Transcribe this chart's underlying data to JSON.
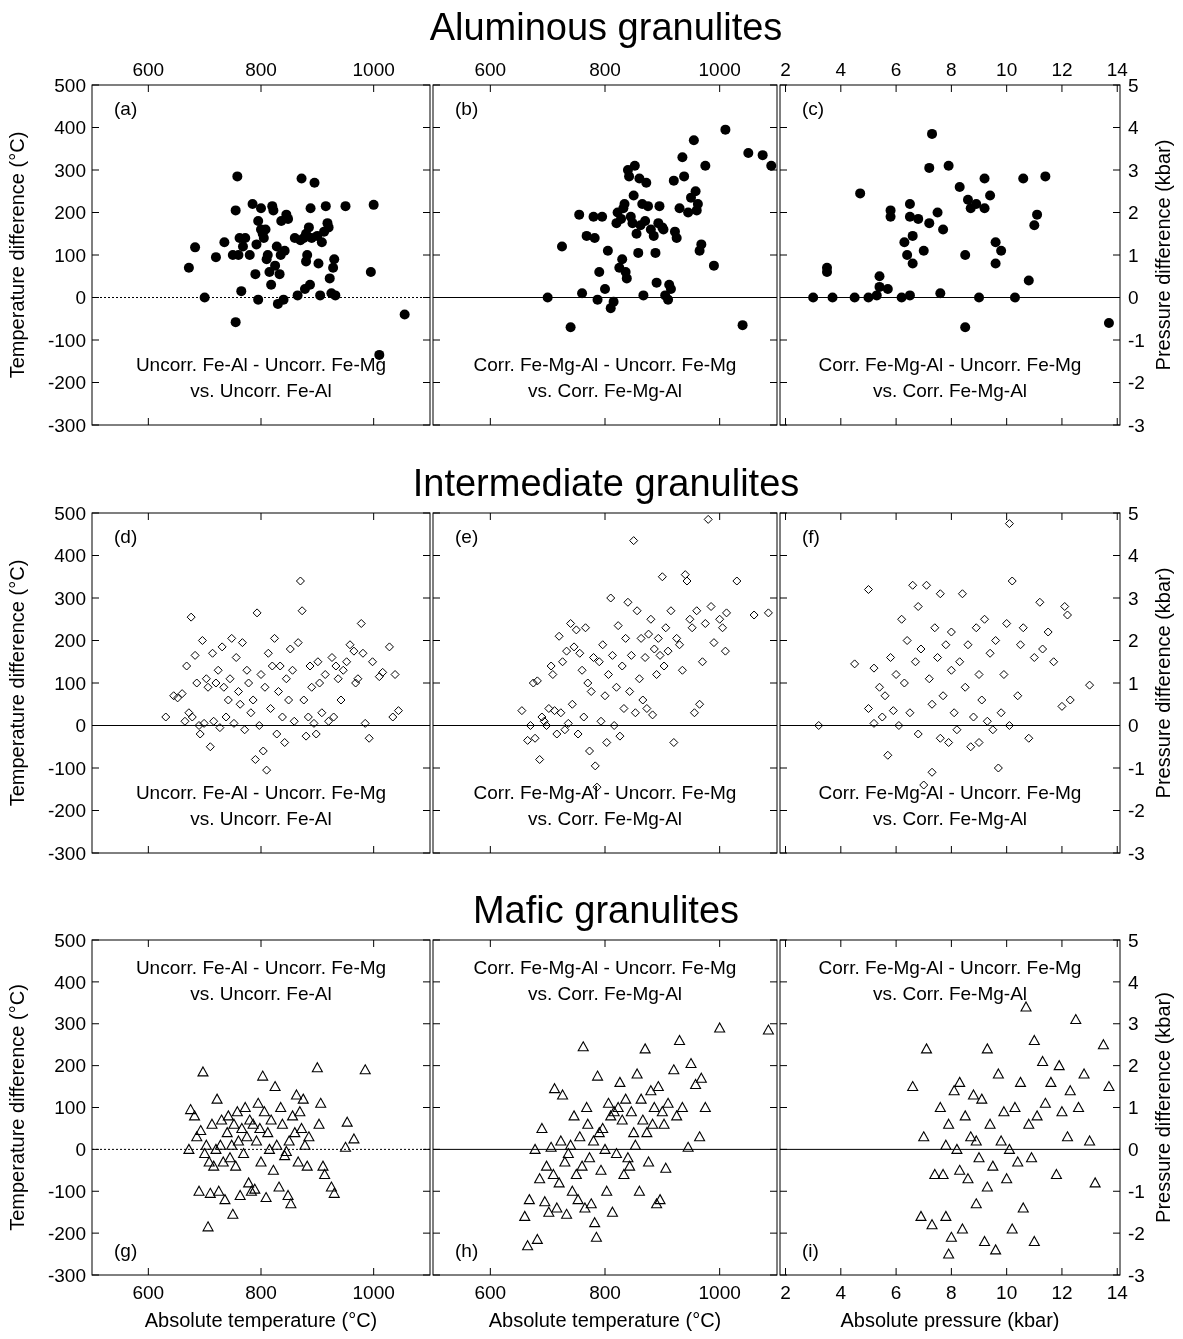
{
  "chart_data": [
    {
      "type": "scatter",
      "ylabel": "Temperature difference (°C)",
      "xlim": [
        500,
        1100
      ],
      "xticks": [
        600,
        800,
        1000
      ],
      "ylim": [
        -300,
        500
      ],
      "yticks": [
        -300,
        -200,
        -100,
        0,
        100,
        200,
        300,
        400,
        500
      ],
      "marker": "circle",
      "annotations": [
        "(a)",
        "Uncorr. Fe-Al - Uncorr. Fe-Mg\nvs. Uncorr. Fe-Al"
      ],
      "ref_lines": [
        {
          "axis": "y",
          "value": 0,
          "line_style": "dotted"
        }
      ],
      "series": [
        {
          "color": "#000000",
          "x": [
            672,
            683,
            700,
            720,
            735,
            755,
            758,
            755,
            760,
            762,
            765,
            768,
            772,
            780,
            785,
            790,
            792,
            795,
            795,
            800,
            800,
            803,
            805,
            808,
            810,
            812,
            815,
            818,
            820,
            822,
            825,
            828,
            830,
            833,
            835,
            836,
            840,
            842,
            845,
            848,
            860,
            865,
            872,
            876,
            878,
            880,
            882,
            885,
            887,
            888,
            890,
            895,
            900,
            902,
            905,
            908,
            912,
            915,
            918,
            920,
            922,
            925,
            928,
            930,
            932,
            950,
            995,
            1000,
            1010,
            1055,
            750,
            870,
            880
          ],
          "values": [
            70,
            118,
            0,
            95,
            130,
            -58,
            285,
            205,
            100,
            140,
            15,
            120,
            140,
            100,
            220,
            55,
            125,
            -5,
            180,
            210,
            160,
            150,
            140,
            160,
            90,
            100,
            60,
            30,
            215,
            205,
            75,
            120,
            -15,
            55,
            100,
            180,
            -5,
            110,
            195,
            185,
            140,
            5,
            280,
            140,
            20,
            85,
            100,
            165,
            30,
            210,
            140,
            270,
            145,
            80,
            5,
            130,
            155,
            215,
            175,
            165,
            45,
            10,
            70,
            90,
            5,
            215,
            60,
            218,
            -135,
            -40,
            100,
            135,
            150
          ]
        }
      ]
    },
    {
      "type": "scatter",
      "title": "Aluminous granulites",
      "xlim": [
        500,
        1100
      ],
      "xticks": [
        600,
        800,
        1000
      ],
      "ylim": [
        -300,
        500
      ],
      "yticks": [
        -300,
        -200,
        -100,
        0,
        100,
        200,
        300,
        400,
        500
      ],
      "tick_labels": "x",
      "marker": "circle",
      "annotations": [
        "(b)",
        "Corr. Fe-Mg-Al - Uncorr. Fe-Mg\nvs. Corr. Fe-Mg-Al"
      ],
      "ref_lines": [
        {
          "axis": "y",
          "value": 0,
          "line_style": "solid"
        }
      ],
      "series": [
        {
          "color": "#000000",
          "x": [
            700,
            725,
            740,
            755,
            760,
            768,
            780,
            782,
            787,
            790,
            795,
            800,
            805,
            810,
            815,
            820,
            822,
            825,
            828,
            830,
            832,
            834,
            836,
            838,
            840,
            842,
            845,
            848,
            850,
            852,
            855,
            858,
            860,
            862,
            865,
            867,
            870,
            872,
            875,
            880,
            885,
            888,
            890,
            893,
            895,
            900,
            902,
            905,
            910,
            912,
            915,
            920,
            922,
            925,
            930,
            935,
            938,
            945,
            950,
            955,
            958,
            960,
            962,
            965,
            968,
            975,
            990,
            1010,
            1040,
            1050,
            1075,
            1090
          ],
          "values": [
            0,
            120,
            -70,
            195,
            10,
            145,
            190,
            140,
            -5,
            60,
            190,
            20,
            110,
            -25,
            -10,
            175,
            200,
            70,
            185,
            90,
            210,
            220,
            60,
            45,
            300,
            285,
            190,
            175,
            240,
            310,
            150,
            105,
            280,
            170,
            220,
            5,
            180,
            270,
            215,
            160,
            145,
            105,
            35,
            175,
            215,
            165,
            160,
            5,
            -5,
            30,
            20,
            275,
            155,
            140,
            210,
            330,
            285,
            200,
            235,
            370,
            250,
            205,
            220,
            110,
            125,
            310,
            75,
            395,
            -65,
            340,
            335,
            310
          ]
        }
      ]
    },
    {
      "type": "scatter",
      "y2label": "Pressure difference (kbar)",
      "xlim": [
        1.8,
        14.1
      ],
      "xticks": [
        2,
        4,
        6,
        8,
        10,
        12,
        14
      ],
      "y2lim": [
        -3,
        5
      ],
      "y2ticks": [
        -3,
        -2,
        -1,
        0,
        1,
        2,
        3,
        4,
        5
      ],
      "marker": "circle",
      "annotations": [
        "(c)",
        "Corr. Fe-Mg-Al - Uncorr. Fe-Mg\nvs. Corr. Fe-Mg-Al"
      ],
      "ref_lines": [
        {
          "axis": "y2",
          "value": 0,
          "line_style": "solid"
        }
      ],
      "series": [
        {
          "color": "#000000",
          "axis": "y2",
          "x": [
            3,
            3.5,
            3.5,
            3.7,
            4.5,
            4.7,
            5,
            5.3,
            5.4,
            5.4,
            5.7,
            5.8,
            5.8,
            6.2,
            6.3,
            6.4,
            6.5,
            6.5,
            6.5,
            6.6,
            6.6,
            6.8,
            7.0,
            7.2,
            7.2,
            7.3,
            7.5,
            7.6,
            7.7,
            7.9,
            8.3,
            8.5,
            8.5,
            8.6,
            8.7,
            8.9,
            9.0,
            9.2,
            9.2,
            9.4,
            9.6,
            9.6,
            9.8,
            10.3,
            10.6,
            10.8,
            11.0,
            11.1,
            11.4,
            13.7
          ],
          "values": [
            0,
            0.7,
            0.6,
            0,
            0,
            2.45,
            0,
            0.05,
            0.5,
            0.25,
            0.2,
            2.05,
            1.9,
            0,
            1.3,
            1,
            0.05,
            2.2,
            1.9,
            0.8,
            1.45,
            1.85,
            1.1,
            1.75,
            3.05,
            3.85,
            2.0,
            0.1,
            1.6,
            3.1,
            2.6,
            -0.7,
            1.0,
            2.3,
            2.1,
            2.2,
            0,
            2.8,
            2.1,
            2.4,
            1.3,
            0.8,
            1.1,
            0,
            2.8,
            0.4,
            1.7,
            1.95,
            2.85,
            -0.6
          ]
        }
      ]
    },
    {
      "type": "scatter",
      "ylabel": "Temperature difference (°C)",
      "xlim": [
        500,
        1100
      ],
      "xticks": [
        600,
        800,
        1000
      ],
      "ylim": [
        -300,
        500
      ],
      "yticks": [
        -300,
        -200,
        -100,
        0,
        100,
        200,
        300,
        400,
        500
      ],
      "tick_labels": "y",
      "marker": "diamond",
      "annotations": [
        "(d)",
        "Uncorr. Fe-Al - Uncorr. Fe-Mg\nvs. Uncorr. Fe-Al"
      ],
      "ref_lines": [
        {
          "axis": "y",
          "value": 0,
          "line_style": "solid"
        }
      ],
      "series": [
        {
          "color": "#000000",
          "x": [
            631,
            645,
            652,
            660,
            665,
            668,
            672,
            676,
            678,
            683,
            686,
            690,
            692,
            696,
            699,
            703,
            706,
            710,
            714,
            716,
            720,
            724,
            727,
            731,
            734,
            738,
            742,
            745,
            748,
            752,
            756,
            760,
            763,
            767,
            771,
            775,
            778,
            782,
            786,
            790,
            793,
            797,
            800,
            804,
            807,
            810,
            813,
            817,
            820,
            824,
            828,
            831,
            834,
            838,
            842,
            845,
            849,
            852,
            856,
            859,
            866,
            870,
            873,
            876,
            880,
            884,
            887,
            890,
            894,
            898,
            901,
            904,
            908,
            914,
            920,
            926,
            929,
            933,
            937,
            942,
            946,
            952,
            958,
            965,
            968,
            972,
            978,
            981,
            985,
            992,
            998,
            1010,
            1016,
            1028,
            1034,
            1044,
            1038
          ],
          "values": [
            20,
            70,
            65,
            75,
            10,
            140,
            30,
            255,
            20,
            165,
            100,
            0,
            -20,
            200,
            5,
            110,
            90,
            -50,
            170,
            10,
            100,
            130,
            -5,
            185,
            90,
            20,
            60,
            110,
            205,
            5,
            160,
            80,
            50,
            195,
            -10,
            130,
            100,
            30,
            60,
            -80,
            265,
            0,
            120,
            -60,
            90,
            -105,
            170,
            40,
            140,
            205,
            -20,
            80,
            140,
            20,
            -40,
            110,
            60,
            180,
            130,
            10,
            195,
            340,
            270,
            60,
            -25,
            20,
            140,
            90,
            5,
            -20,
            150,
            100,
            30,
            120,
            10,
            160,
            20,
            140,
            110,
            60,
            130,
            150,
            190,
            175,
            100,
            110,
            240,
            170,
            5,
            -30,
            150,
            115,
            125,
            185,
            20,
            35,
            120
          ]
        }
      ]
    },
    {
      "type": "scatter",
      "title": "Intermediate granulites",
      "xlim": [
        500,
        1100
      ],
      "xticks": [
        600,
        800,
        1000
      ],
      "ylim": [
        -300,
        500
      ],
      "yticks": [
        -300,
        -200,
        -100,
        0,
        100,
        200,
        300,
        400,
        500
      ],
      "tick_labels": false,
      "marker": "diamond",
      "annotations": [
        "(e)",
        "Corr. Fe-Mg-Al - Uncorr. Fe-Mg\nvs. Corr. Fe-Mg-Al"
      ],
      "ref_lines": [
        {
          "axis": "y",
          "value": 0,
          "line_style": "solid"
        }
      ],
      "series": [
        {
          "color": "#000000",
          "x": [
            655,
            665,
            670,
            675,
            678,
            682,
            686,
            690,
            694,
            698,
            702,
            706,
            709,
            712,
            716,
            720,
            723,
            726,
            730,
            733,
            736,
            740,
            743,
            746,
            750,
            753,
            756,
            760,
            763,
            766,
            770,
            773,
            776,
            780,
            783,
            786,
            790,
            793,
            796,
            800,
            803,
            806,
            810,
            813,
            816,
            820,
            823,
            826,
            830,
            833,
            836,
            840,
            843,
            846,
            850,
            853,
            856,
            860,
            863,
            866,
            870,
            873,
            876,
            880,
            883,
            886,
            890,
            893,
            896,
            900,
            903,
            906,
            910,
            915,
            920,
            925,
            930,
            935,
            940,
            943,
            948,
            952,
            956,
            960,
            965,
            970,
            975,
            980,
            985,
            990,
            1000,
            1005,
            1010,
            1030,
            1060,
            1085,
            1012
          ],
          "values": [
            35,
            -35,
            0,
            100,
            -30,
            105,
            -80,
            20,
            10,
            0,
            40,
            140,
            120,
            35,
            -20,
            210,
            30,
            150,
            -10,
            175,
            5,
            240,
            50,
            185,
            225,
            -20,
            170,
            130,
            20,
            230,
            100,
            -60,
            80,
            160,
            -95,
            -145,
            150,
            10,
            190,
            70,
            -40,
            120,
            300,
            165,
            0,
            90,
            235,
            -25,
            140,
            40,
            205,
            290,
            80,
            165,
            435,
            30,
            270,
            110,
            205,
            60,
            160,
            40,
            215,
            250,
            25,
            180,
            120,
            205,
            165,
            350,
            140,
            230,
            175,
            270,
            -40,
            205,
            190,
            130,
            355,
            340,
            250,
            230,
            30,
            270,
            50,
            150,
            240,
            485,
            280,
            195,
            250,
            230,
            175,
            340,
            260,
            265,
            265
          ]
        }
      ]
    },
    {
      "type": "scatter",
      "y2label": "Pressure difference (kbar)",
      "xlim": [
        1.8,
        14.1
      ],
      "xticks": [
        2,
        4,
        6,
        8,
        10,
        12,
        14
      ],
      "y2lim": [
        -3,
        5
      ],
      "y2ticks": [
        -3,
        -2,
        -1,
        0,
        1,
        2,
        3,
        4,
        5
      ],
      "tick_labels": "y",
      "marker": "diamond",
      "annotations": [
        "(f)",
        "Corr. Fe-Mg-Al - Uncorr. Fe-Mg\nvs. Corr. Fe-Mg-Al"
      ],
      "ref_lines": [
        {
          "axis": "y2",
          "value": 0,
          "line_style": "solid"
        }
      ],
      "series": [
        {
          "color": "#000000",
          "axis": "y2",
          "x": [
            3.2,
            4.5,
            5.0,
            5.2,
            5.0,
            5.2,
            5.4,
            5.5,
            5.6,
            5.7,
            5.8,
            5.9,
            6.0,
            6.1,
            6.2,
            6.3,
            6.4,
            6.5,
            6.6,
            6.7,
            6.8,
            6.8,
            6.9,
            7.0,
            7.1,
            7.2,
            7.3,
            7.3,
            7.4,
            7.5,
            7.6,
            7.6,
            7.7,
            7.8,
            7.9,
            8.0,
            8.0,
            8.1,
            8.2,
            8.3,
            8.4,
            8.5,
            8.6,
            8.7,
            8.8,
            8.9,
            9.0,
            9.0,
            9.1,
            9.2,
            9.3,
            9.4,
            9.5,
            9.6,
            9.7,
            9.8,
            9.9,
            10.0,
            10.1,
            10.2,
            10.4,
            10.5,
            10.6,
            10.8,
            11.0,
            10.1,
            11.2,
            11.3,
            11.5,
            11.7,
            12.0,
            12.1,
            12.2,
            12.3,
            13.0
          ],
          "values": [
            0,
            1.45,
            3.2,
            1.35,
            0.4,
            0.05,
            0.9,
            0.2,
            0.7,
            -0.7,
            1.6,
            0.35,
            1.2,
            0,
            2.5,
            1.0,
            2.0,
            0.3,
            3.3,
            1.5,
            -0.2,
            2.8,
            1.8,
            -1.4,
            3.3,
            1.1,
            -1.1,
            0.5,
            2.3,
            1.6,
            -0.3,
            3.1,
            0.7,
            1.9,
            -0.4,
            1.3,
            2.2,
            0.3,
            -0.1,
            1.5,
            3.1,
            0.9,
            1.9,
            -0.5,
            0.2,
            2.3,
            1.2,
            -0.4,
            0.6,
            2.5,
            0.1,
            1.7,
            -0.1,
            2.0,
            -1.0,
            0.3,
            1.2,
            2.4,
            0,
            3.4,
            0.7,
            1.9,
            2.3,
            -0.3,
            1.6,
            4.75,
            2.9,
            1.8,
            2.2,
            1.5,
            0.45,
            2.8,
            2.6,
            0.6,
            0.95
          ]
        }
      ]
    },
    {
      "type": "scatter",
      "xlabel": "Absolute temperature (°C)",
      "ylabel": "Temperature difference (°C)",
      "xlim": [
        500,
        1100
      ],
      "xticks": [
        600,
        800,
        1000
      ],
      "ylim": [
        -300,
        500
      ],
      "yticks": [
        -300,
        -200,
        -100,
        0,
        100,
        200,
        300,
        400,
        500
      ],
      "marker": "triangle",
      "annotations": [
        "(g)",
        "Uncorr. Fe-Al - Uncorr. Fe-Mg\nvs. Uncorr. Fe-Al"
      ],
      "ref_lines": [
        {
          "axis": "y",
          "value": 0,
          "line_style": "dotted"
        }
      ],
      "series": [
        {
          "color": "#000000",
          "x": [
            672,
            675,
            682,
            686,
            690,
            693,
            697,
            700,
            703,
            706,
            708,
            710,
            713,
            716,
            720,
            722,
            725,
            728,
            730,
            733,
            736,
            740,
            742,
            745,
            748,
            750,
            752,
            755,
            758,
            760,
            763,
            766,
            769,
            772,
            775,
            778,
            780,
            783,
            786,
            789,
            792,
            795,
            798,
            800,
            803,
            806,
            809,
            812,
            815,
            818,
            822,
            825,
            828,
            832,
            835,
            838,
            842,
            845,
            848,
            850,
            853,
            856,
            860,
            863,
            866,
            869,
            872,
            875,
            878,
            882,
            885,
            900,
            903,
            906,
            910,
            913,
            925,
            930,
            950,
            953,
            965,
            985
          ],
          "values": [
            0,
            95,
            80,
            30,
            -100,
            45,
            185,
            -10,
            10,
            -185,
            -30,
            -105,
            60,
            -40,
            0,
            120,
            -100,
            10,
            70,
            -30,
            -120,
            40,
            80,
            -20,
            10,
            -155,
            60,
            -40,
            90,
            20,
            -110,
            50,
            -10,
            100,
            30,
            -80,
            70,
            -100,
            60,
            -95,
            20,
            110,
            50,
            -30,
            175,
            90,
            -115,
            40,
            0,
            70,
            -50,
            150,
            10,
            -90,
            100,
            60,
            -15,
            -5,
            -110,
            20,
            -130,
            80,
            40,
            130,
            -30,
            90,
            50,
            120,
            10,
            -40,
            30,
            195,
            60,
            110,
            -40,
            -60,
            -90,
            -105,
            5,
            65,
            25,
            190
          ]
        }
      ]
    },
    {
      "type": "scatter",
      "title": "Mafic granulites",
      "xlabel": "Absolute temperature (°C)",
      "xlim": [
        500,
        1100
      ],
      "xticks": [
        600,
        800,
        1000
      ],
      "ylim": [
        -300,
        500
      ],
      "yticks": [
        -300,
        -200,
        -100,
        0,
        100,
        200,
        300,
        400,
        500
      ],
      "tick_labels": "x",
      "marker": "triangle",
      "annotations": [
        "(h)",
        "Corr. Fe-Mg-Al - Uncorr. Fe-Mg\nvs. Corr. Fe-Mg-Al"
      ],
      "ref_lines": [
        {
          "axis": "y",
          "value": 0,
          "line_style": "solid"
        }
      ],
      "series": [
        {
          "color": "#000000",
          "x": [
            660,
            665,
            668,
            678,
            682,
            686,
            690,
            695,
            698,
            702,
            706,
            710,
            712,
            716,
            720,
            723,
            726,
            730,
            733,
            736,
            740,
            743,
            746,
            750,
            753,
            756,
            760,
            762,
            765,
            768,
            770,
            773,
            776,
            780,
            782,
            785,
            787,
            790,
            793,
            796,
            800,
            803,
            806,
            810,
            813,
            816,
            820,
            823,
            826,
            830,
            833,
            836,
            840,
            843,
            846,
            850,
            853,
            856,
            860,
            863,
            866,
            870,
            873,
            876,
            880,
            883,
            886,
            890,
            893,
            896,
            900,
            903,
            906,
            910,
            920,
            925,
            930,
            935,
            945,
            950,
            958,
            965,
            968,
            975,
            1000,
            1085
          ],
          "values": [
            -160,
            -230,
            -120,
            0,
            -215,
            -70,
            50,
            -125,
            -40,
            -150,
            5,
            -60,
            145,
            -140,
            -80,
            20,
            130,
            -30,
            -155,
            -10,
            10,
            -100,
            80,
            -60,
            -120,
            30,
            -40,
            245,
            -140,
            100,
            60,
            -20,
            -130,
            20,
            -175,
            -210,
            175,
            40,
            -50,
            50,
            0,
            -100,
            110,
            80,
            -150,
            90,
            -10,
            100,
            160,
            70,
            -60,
            120,
            -20,
            -40,
            90,
            40,
            10,
            180,
            -100,
            120,
            70,
            240,
            40,
            -30,
            140,
            60,
            100,
            -130,
            150,
            -120,
            90,
            60,
            -45,
            110,
            190,
            80,
            260,
            100,
            5,
            205,
            155,
            30,
            170,
            100,
            290,
            285
          ]
        }
      ]
    },
    {
      "type": "scatter",
      "xlabel": "Absolute pressure (kbar)",
      "y2label": "Pressure difference (kbar)",
      "xlim": [
        1.8,
        14.1
      ],
      "xticks": [
        2,
        4,
        6,
        8,
        10,
        12,
        14
      ],
      "y2lim": [
        -3,
        5
      ],
      "y2ticks": [
        -3,
        -2,
        -1,
        0,
        1,
        2,
        3,
        4,
        5
      ],
      "marker": "triangle",
      "annotations": [
        "(i)",
        "Corr. Fe-Mg-Al - Uncorr. Fe-Mg\nvs. Corr. Fe-Mg-Al"
      ],
      "ref_lines": [
        {
          "axis": "y2",
          "value": 0,
          "line_style": "solid"
        }
      ],
      "series": [
        {
          "color": "#000000",
          "axis": "y2",
          "x": [
            6.6,
            6.9,
            7.0,
            7.1,
            7.3,
            7.4,
            7.6,
            7.7,
            7.8,
            7.8,
            7.9,
            7.9,
            8.0,
            8.1,
            8.2,
            8.3,
            8.3,
            8.4,
            8.5,
            8.6,
            8.7,
            8.8,
            8.9,
            8.9,
            9.0,
            9.1,
            9.2,
            9.3,
            9.3,
            9.4,
            9.5,
            9.6,
            9.7,
            9.8,
            9.9,
            10.0,
            10.1,
            10.2,
            10.3,
            10.4,
            10.5,
            10.6,
            10.7,
            10.8,
            10.9,
            11.0,
            11.0,
            11.1,
            11.3,
            11.4,
            11.6,
            11.8,
            11.9,
            12.0,
            12.2,
            12.3,
            12.5,
            12.6,
            12.8,
            13.0,
            13.2,
            13.5,
            13.7
          ],
          "values": [
            1.5,
            -1.6,
            0.3,
            2.4,
            -1.8,
            -0.6,
            1.0,
            -0.6,
            -1.6,
            0.1,
            -2.5,
            0.6,
            -2.1,
            1.4,
            0,
            -0.5,
            1.6,
            -1.9,
            0.8,
            -0.7,
            0.3,
            1.3,
            -1.3,
            0.2,
            -0.2,
            1.2,
            -2.2,
            -0.9,
            2.4,
            0.6,
            -0.4,
            -2.4,
            1.8,
            0.2,
            0.9,
            -0.7,
            0,
            -1.9,
            1.0,
            -0.3,
            1.6,
            -1.4,
            3.4,
            0.6,
            -0.2,
            -2.2,
            2.6,
            0.8,
            2.1,
            1.1,
            1.6,
            -0.6,
            2.0,
            0.9,
            0.3,
            1.4,
            3.1,
            1.0,
            1.8,
            0.2,
            -0.8,
            2.5,
            1.5
          ]
        }
      ]
    }
  ]
}
